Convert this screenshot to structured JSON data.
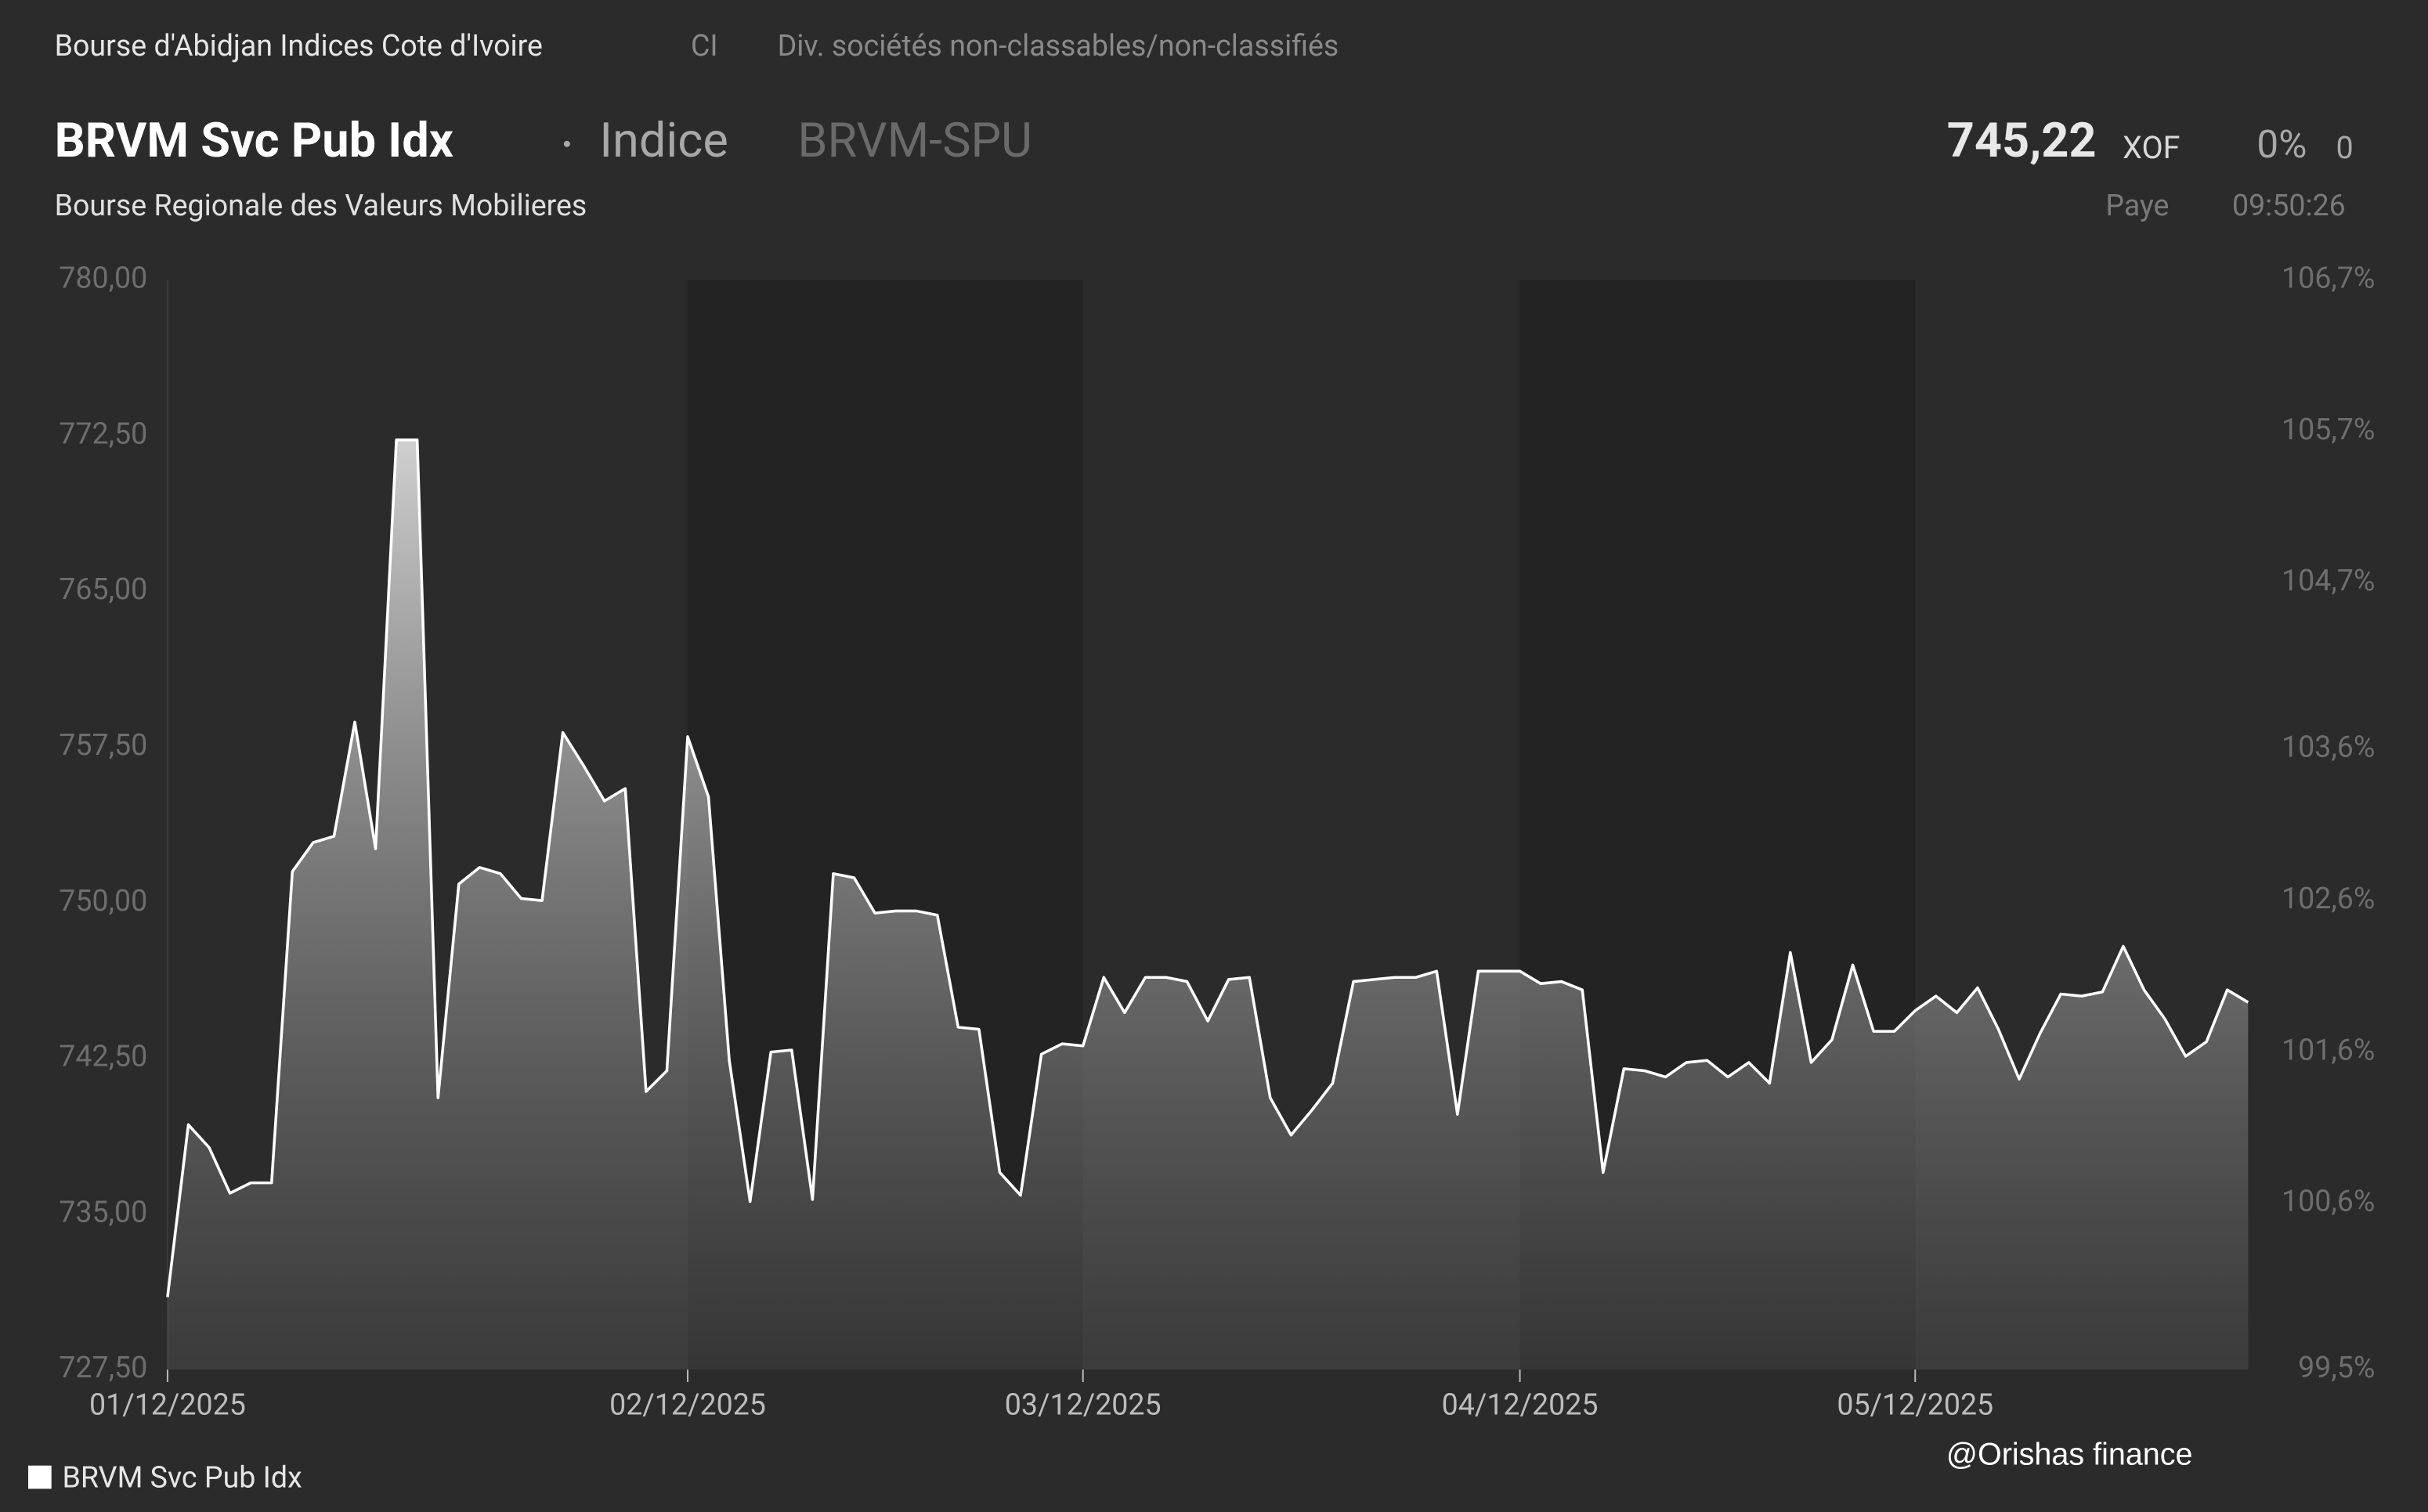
{
  "header": {
    "exchange": "Bourse d'Abidjan Indices Cote d'Ivoire",
    "country": "CI",
    "sector": "Div. sociétés non-classables/non-classifiés",
    "title": "BRVM Svc Pub Idx",
    "kind": "Indice",
    "symbol": "BRVM-SPU",
    "price": "745,22",
    "currency": "XOF",
    "change_pct": "0%",
    "change": "0",
    "market": "Bourse Regionale des Valeurs Mobilieres",
    "status": "Paye",
    "time": "09:50:26"
  },
  "chart_data": {
    "type": "area",
    "categories": [
      "01/12/2025",
      null,
      null,
      null,
      null,
      null,
      null,
      null,
      null,
      null,
      null,
      null,
      null,
      null,
      null,
      null,
      null,
      null,
      null,
      null,
      null,
      null,
      null,
      null,
      null,
      "02/12/2025",
      null,
      null,
      null,
      null,
      null,
      null,
      null,
      null,
      null,
      null,
      null,
      null,
      null,
      null,
      null,
      null,
      null,
      null,
      "03/12/2025",
      null,
      null,
      null,
      null,
      null,
      null,
      null,
      null,
      null,
      null,
      null,
      null,
      null,
      null,
      null,
      null,
      null,
      null,
      null,
      null,
      "04/12/2025",
      null,
      null,
      null,
      null,
      null,
      null,
      null,
      null,
      null,
      null,
      null,
      null,
      null,
      null,
      null,
      null,
      null,
      null,
      "05/12/2025",
      null,
      null,
      null,
      null,
      null,
      null,
      null,
      null,
      null,
      null,
      null,
      null,
      null,
      null,
      null,
      null
    ],
    "series": [
      {
        "name": "BRVM Svc Pub Idx",
        "color": "#ffffff",
        "values": [
          731.0,
          739.3,
          738.2,
          736.0,
          736.5,
          736.5,
          751.5,
          752.9,
          753.2,
          758.7,
          752.6,
          772.3,
          772.3,
          740.6,
          750.9,
          751.7,
          751.4,
          750.2,
          750.1,
          758.2,
          756.6,
          754.9,
          755.5,
          740.9,
          741.9,
          758.0,
          755.1,
          742.4,
          735.6,
          742.8,
          742.9,
          735.7,
          751.4,
          751.2,
          749.5,
          749.6,
          749.6,
          749.4,
          744.0,
          743.9,
          737.0,
          735.9,
          742.7,
          743.2,
          743.1,
          746.4,
          744.7,
          746.4,
          746.4,
          746.2,
          744.3,
          746.3,
          746.4,
          740.6,
          738.8,
          740.0,
          741.3,
          746.2,
          746.3,
          746.4,
          746.4,
          746.7,
          739.8,
          746.7,
          746.7,
          746.7,
          746.1,
          746.2,
          745.8,
          737.0,
          742.0,
          741.9,
          741.6,
          742.3,
          742.4,
          741.6,
          742.3,
          741.3,
          747.6,
          742.3,
          743.4,
          747.0,
          743.8,
          743.8,
          744.8,
          745.5,
          744.7,
          745.9,
          743.9,
          741.5,
          743.7,
          745.6,
          745.5,
          745.7,
          747.9,
          745.8,
          744.4,
          742.6,
          743.3,
          745.8,
          745.2
        ]
      }
    ],
    "ylim": [
      727.5,
      780
    ],
    "yticks": [
      {
        "value": 727.5,
        "label": "727,50"
      },
      {
        "value": 735,
        "label": "735,00"
      },
      {
        "value": 742.5,
        "label": "742,50"
      },
      {
        "value": 750,
        "label": "750,00"
      },
      {
        "value": 757.5,
        "label": "757,50"
      },
      {
        "value": 765,
        "label": "765,00"
      },
      {
        "value": 772.5,
        "label": "772,50"
      },
      {
        "value": 780,
        "label": "780,00"
      }
    ],
    "y2lim": [
      99.5,
      106.7
    ],
    "y2ticks": [
      {
        "value": 99.5,
        "label": "99,5%"
      },
      {
        "value": 100.6,
        "label": "100,6%"
      },
      {
        "value": 101.6,
        "label": "101,6%"
      },
      {
        "value": 102.6,
        "label": "102,6%"
      },
      {
        "value": 103.6,
        "label": "103,6%"
      },
      {
        "value": 104.7,
        "label": "104,7%"
      },
      {
        "value": 105.7,
        "label": "105,7%"
      },
      {
        "value": 106.7,
        "label": "106,7%"
      }
    ],
    "grid": false,
    "legend": "bottom-left"
  },
  "watermark": "@Orishas finance"
}
